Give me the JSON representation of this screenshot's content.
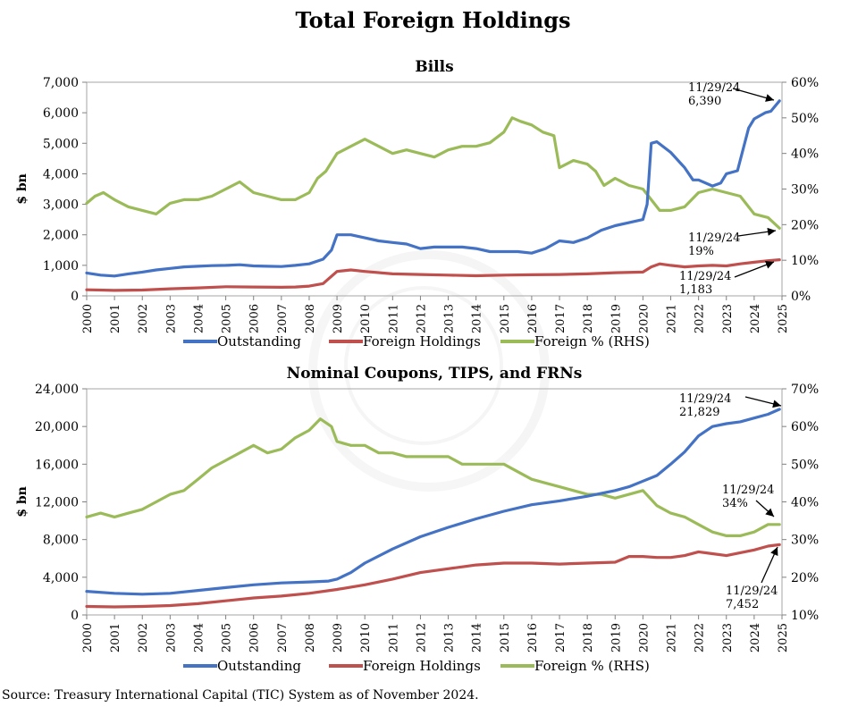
{
  "title": "Total Foreign Holdings",
  "source": "Source: Treasury International Capital (TIC) System as of November 2024.",
  "colors": {
    "outstanding": "#4472C4",
    "foreign": "#C0504D",
    "pct": "#9BBB59"
  },
  "chart_data": [
    {
      "type": "line",
      "title": "Bills",
      "ylabel": "$ bn",
      "ylim": [
        0,
        7000
      ],
      "yticks": [
        0,
        1000,
        2000,
        3000,
        4000,
        5000,
        6000,
        7000
      ],
      "ytick_labels": [
        "0",
        "1,000",
        "2,000",
        "3,000",
        "4,000",
        "5,000",
        "6,000",
        "7,000"
      ],
      "y2lim": [
        0,
        60
      ],
      "y2ticks": [
        0,
        10,
        20,
        30,
        40,
        50,
        60
      ],
      "y2tick_labels": [
        "0%",
        "10%",
        "20%",
        "30%",
        "40%",
        "50%",
        "60%"
      ],
      "xlim": [
        2000,
        2025
      ],
      "xticks": [
        "2000",
        "2001",
        "2002",
        "2003",
        "2004",
        "2005",
        "2006",
        "2007",
        "2008",
        "2009",
        "2010",
        "2011",
        "2012",
        "2013",
        "2014",
        "2015",
        "2016",
        "2017",
        "2018",
        "2019",
        "2020",
        "2021",
        "2022",
        "2023",
        "2024",
        "2025"
      ],
      "series": [
        {
          "name": "Outstanding",
          "axis": "left",
          "x": [
            2000.0,
            2000.5,
            2001.0,
            2001.5,
            2002.0,
            2002.5,
            2003.0,
            2003.5,
            2004.0,
            2004.5,
            2005.0,
            2005.5,
            2006.0,
            2006.5,
            2007.0,
            2007.5,
            2008.0,
            2008.5,
            2008.8,
            2009.0,
            2009.5,
            2010.0,
            2010.5,
            2011.0,
            2011.5,
            2012.0,
            2012.5,
            2013.0,
            2013.5,
            2014.0,
            2014.5,
            2015.0,
            2015.5,
            2016.0,
            2016.5,
            2017.0,
            2017.5,
            2018.0,
            2018.5,
            2019.0,
            2019.5,
            2020.0,
            2020.15,
            2020.3,
            2020.5,
            2021.0,
            2021.5,
            2021.8,
            2022.0,
            2022.5,
            2022.8,
            2023.0,
            2023.4,
            2023.8,
            2024.0,
            2024.4,
            2024.6,
            2024.91
          ],
          "y": [
            750,
            680,
            650,
            720,
            780,
            850,
            900,
            950,
            970,
            990,
            1000,
            1020,
            980,
            970,
            960,
            1000,
            1050,
            1200,
            1500,
            2000,
            2000,
            1900,
            1800,
            1750,
            1700,
            1550,
            1600,
            1600,
            1600,
            1550,
            1450,
            1450,
            1450,
            1400,
            1550,
            1800,
            1750,
            1900,
            2150,
            2300,
            2400,
            2500,
            3000,
            5000,
            5050,
            4700,
            4200,
            3800,
            3800,
            3600,
            3700,
            4000,
            4100,
            5500,
            5800,
            6000,
            6050,
            6390
          ]
        },
        {
          "name": "Foreign Holdings",
          "axis": "left",
          "x": [
            2000.0,
            2001.0,
            2002.0,
            2003.0,
            2004.0,
            2005.0,
            2006.0,
            2007.0,
            2007.5,
            2008.0,
            2008.5,
            2009.0,
            2009.5,
            2010.0,
            2011.0,
            2012.0,
            2013.0,
            2014.0,
            2015.0,
            2016.0,
            2017.0,
            2018.0,
            2019.0,
            2020.0,
            2020.3,
            2020.6,
            2021.0,
            2021.5,
            2022.0,
            2022.5,
            2023.0,
            2023.5,
            2024.0,
            2024.5,
            2024.91
          ],
          "y": [
            200,
            180,
            190,
            230,
            260,
            300,
            290,
            280,
            290,
            320,
            400,
            800,
            850,
            800,
            720,
            700,
            680,
            660,
            680,
            690,
            700,
            720,
            760,
            780,
            950,
            1050,
            1000,
            950,
            980,
            1000,
            980,
            1050,
            1100,
            1150,
            1183
          ]
        },
        {
          "name": "Foreign % (RHS)",
          "axis": "right",
          "x": [
            2000.0,
            2000.3,
            2000.6,
            2001.0,
            2001.5,
            2002.0,
            2002.5,
            2003.0,
            2003.5,
            2004.0,
            2004.5,
            2005.0,
            2005.5,
            2006.0,
            2006.5,
            2007.0,
            2007.5,
            2008.0,
            2008.3,
            2008.6,
            2009.0,
            2009.5,
            2010.0,
            2010.5,
            2011.0,
            2011.5,
            2012.0,
            2012.5,
            2013.0,
            2013.5,
            2014.0,
            2014.5,
            2015.0,
            2015.3,
            2015.6,
            2016.0,
            2016.4,
            2016.8,
            2017.0,
            2017.5,
            2018.0,
            2018.3,
            2018.6,
            2019.0,
            2019.5,
            2020.0,
            2020.3,
            2020.6,
            2021.0,
            2021.5,
            2022.0,
            2022.5,
            2023.0,
            2023.5,
            2024.0,
            2024.5,
            2024.91
          ],
          "y": [
            26,
            28,
            29,
            27,
            25,
            24,
            23,
            26,
            27,
            27,
            28,
            30,
            32,
            29,
            28,
            27,
            27,
            29,
            33,
            35,
            40,
            42,
            44,
            42,
            40,
            41,
            40,
            39,
            41,
            42,
            42,
            43,
            46,
            50,
            49,
            48,
            46,
            45,
            36,
            38,
            37,
            35,
            31,
            33,
            31,
            30,
            27,
            24,
            24,
            25,
            29,
            30,
            29,
            28,
            23,
            22,
            19
          ]
        }
      ],
      "annotations": [
        {
          "date": "11/29/24",
          "value": "6,390"
        },
        {
          "date": "11/29/24",
          "value": "19%"
        },
        {
          "date": "11/29/24",
          "value": "1,183"
        }
      ]
    },
    {
      "type": "line",
      "title": "Nominal Coupons, TIPS, and FRNs",
      "ylabel": "$ bn",
      "ylim": [
        0,
        24000
      ],
      "yticks": [
        0,
        4000,
        8000,
        12000,
        16000,
        20000,
        24000
      ],
      "ytick_labels": [
        "0",
        "4,000",
        "8,000",
        "12,000",
        "16,000",
        "20,000",
        "24,000"
      ],
      "y2lim": [
        10,
        70
      ],
      "y2ticks": [
        10,
        20,
        30,
        40,
        50,
        60,
        70
      ],
      "y2tick_labels": [
        "10%",
        "20%",
        "30%",
        "40%",
        "50%",
        "60%",
        "70%"
      ],
      "xlim": [
        2000,
        2025
      ],
      "xticks": [
        "2000",
        "2001",
        "2002",
        "2003",
        "2004",
        "2005",
        "2006",
        "2007",
        "2008",
        "2009",
        "2010",
        "2011",
        "2012",
        "2013",
        "2014",
        "2015",
        "2016",
        "2017",
        "2018",
        "2019",
        "2020",
        "2021",
        "2022",
        "2023",
        "2024",
        "2025"
      ],
      "series": [
        {
          "name": "Outstanding",
          "axis": "left",
          "x": [
            2000.0,
            2001.0,
            2002.0,
            2003.0,
            2004.0,
            2005.0,
            2006.0,
            2007.0,
            2008.0,
            2008.7,
            2009.0,
            2009.5,
            2010.0,
            2011.0,
            2012.0,
            2013.0,
            2014.0,
            2015.0,
            2016.0,
            2017.0,
            2018.0,
            2019.0,
            2019.5,
            2020.0,
            2020.5,
            2021.0,
            2021.5,
            2022.0,
            2022.5,
            2023.0,
            2023.5,
            2024.0,
            2024.5,
            2024.91
          ],
          "y": [
            2500,
            2300,
            2200,
            2300,
            2600,
            2900,
            3200,
            3400,
            3500,
            3600,
            3800,
            4500,
            5500,
            7000,
            8300,
            9300,
            10200,
            11000,
            11700,
            12100,
            12600,
            13200,
            13600,
            14200,
            14800,
            16000,
            17300,
            19000,
            20000,
            20300,
            20500,
            20900,
            21300,
            21829
          ]
        },
        {
          "name": "Foreign Holdings",
          "axis": "left",
          "x": [
            2000.0,
            2001.0,
            2002.0,
            2003.0,
            2004.0,
            2005.0,
            2006.0,
            2007.0,
            2008.0,
            2009.0,
            2010.0,
            2011.0,
            2012.0,
            2013.0,
            2014.0,
            2015.0,
            2016.0,
            2017.0,
            2018.0,
            2019.0,
            2019.5,
            2020.0,
            2020.5,
            2021.0,
            2021.5,
            2022.0,
            2022.5,
            2023.0,
            2023.5,
            2024.0,
            2024.5,
            2024.91
          ],
          "y": [
            900,
            850,
            900,
            1000,
            1200,
            1500,
            1800,
            2000,
            2300,
            2700,
            3200,
            3800,
            4500,
            4900,
            5300,
            5500,
            5500,
            5400,
            5500,
            5600,
            6200,
            6200,
            6100,
            6100,
            6300,
            6700,
            6500,
            6300,
            6600,
            6900,
            7300,
            7452
          ]
        },
        {
          "name": "Foreign % (RHS)",
          "axis": "right",
          "x": [
            2000.0,
            2000.5,
            2001.0,
            2001.5,
            2002.0,
            2002.5,
            2003.0,
            2003.5,
            2004.0,
            2004.5,
            2005.0,
            2005.5,
            2006.0,
            2006.5,
            2007.0,
            2007.5,
            2008.0,
            2008.4,
            2008.8,
            2009.0,
            2009.5,
            2010.0,
            2010.5,
            2011.0,
            2011.5,
            2012.0,
            2012.5,
            2013.0,
            2013.5,
            2014.0,
            2014.5,
            2015.0,
            2015.5,
            2016.0,
            2016.5,
            2017.0,
            2017.5,
            2018.0,
            2018.5,
            2019.0,
            2019.5,
            2020.0,
            2020.5,
            2021.0,
            2021.5,
            2022.0,
            2022.5,
            2023.0,
            2023.5,
            2024.0,
            2024.5,
            2024.91
          ],
          "y": [
            36,
            37,
            36,
            37,
            38,
            40,
            42,
            43,
            46,
            49,
            51,
            53,
            55,
            53,
            54,
            57,
            59,
            62,
            60,
            56,
            55,
            55,
            53,
            53,
            52,
            52,
            52,
            52,
            50,
            50,
            50,
            50,
            48,
            46,
            45,
            44,
            43,
            42,
            42,
            41,
            42,
            43,
            39,
            37,
            36,
            34,
            32,
            31,
            31,
            32,
            34,
            34
          ]
        }
      ],
      "annotations": [
        {
          "date": "11/29/24",
          "value": "21,829"
        },
        {
          "date": "11/29/24",
          "value": "34%"
        },
        {
          "date": "11/29/24",
          "value": "7,452"
        }
      ]
    }
  ]
}
